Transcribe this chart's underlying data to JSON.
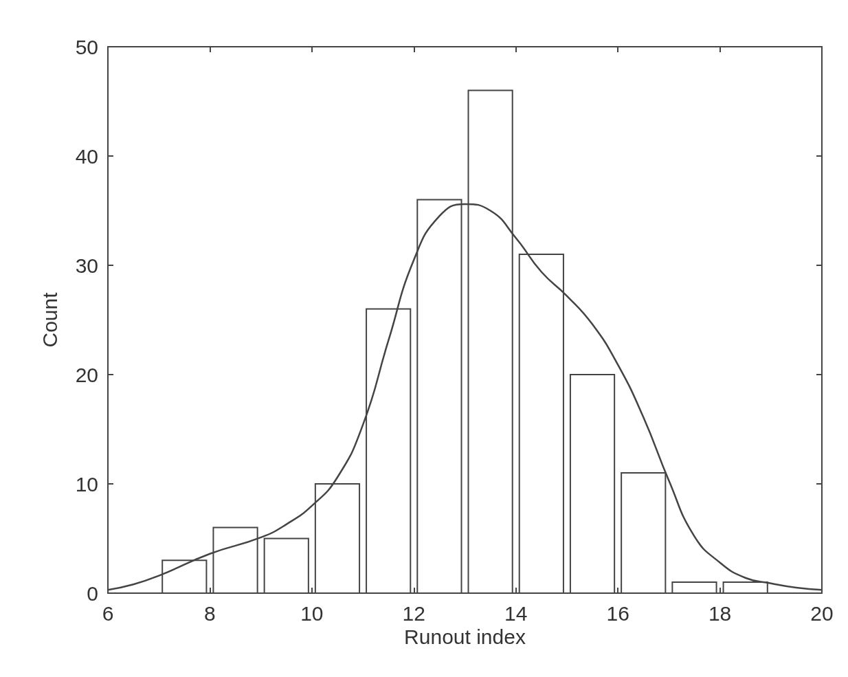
{
  "chart_data": {
    "type": "histogram",
    "xlabel": "Runout index",
    "ylabel": "Count",
    "bins": [
      7,
      8,
      9,
      10,
      11,
      12,
      13,
      14,
      15,
      16,
      17,
      18,
      19
    ],
    "values": [
      3,
      6,
      5,
      10,
      26,
      36,
      46,
      31,
      20,
      11,
      1,
      1
    ],
    "color": "#444444",
    "series": [
      {
        "type": "line",
        "color": "#444444",
        "x": [
          6,
          6.5,
          7,
          8,
          9,
          9.5,
          10,
          10.5,
          11,
          11.5,
          12,
          12.5,
          13,
          13.5,
          14,
          14.5,
          15,
          15.5,
          16,
          16.5,
          17,
          17.5,
          18,
          18.5,
          19,
          19.5,
          20
        ],
        "values": [
          0.3,
          0.8,
          1.6,
          3.6,
          5.1,
          6.3,
          8.0,
          10.6,
          15.4,
          23.1,
          30.5,
          34.5,
          35.6,
          35,
          32.5,
          29.4,
          27.2,
          24.6,
          20.9,
          16.1,
          10.3,
          5.2,
          2.8,
          1.4,
          0.9,
          0.5,
          0.3
        ]
      }
    ],
    "xlim": [
      6,
      20
    ],
    "xticks": [
      6,
      8,
      10,
      12,
      14,
      16,
      18,
      20
    ],
    "ylim": [
      0,
      50
    ],
    "yticks": [
      0,
      10,
      20,
      30,
      40,
      50
    ],
    "grid": false,
    "marker": "none",
    "line_style": "solid"
  }
}
